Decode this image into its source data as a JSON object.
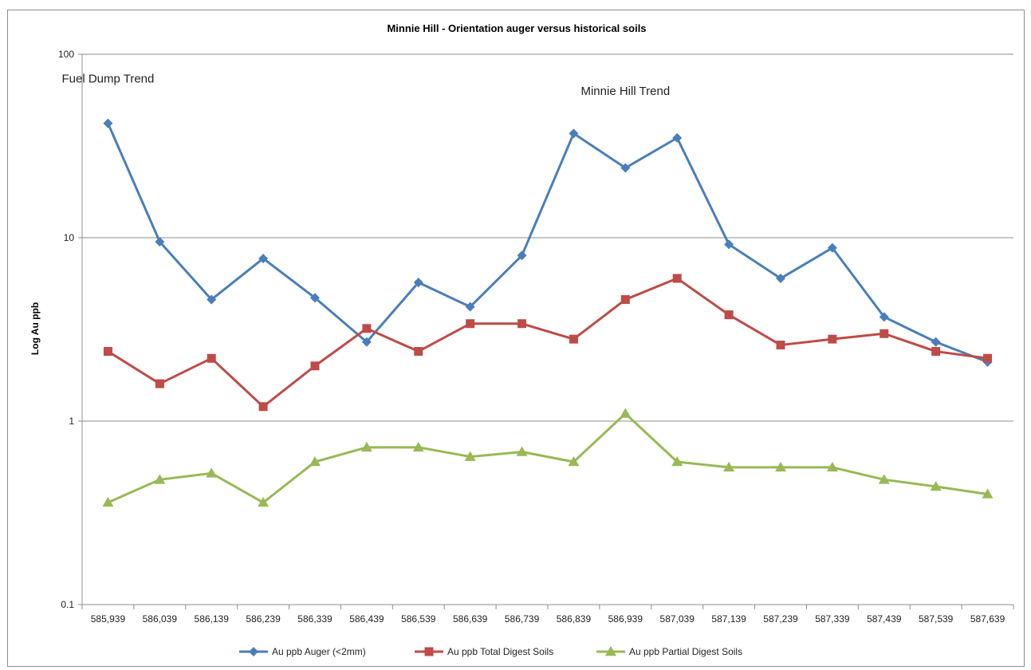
{
  "chart_data": {
    "type": "line",
    "title": "Minnie Hill - Orientation auger versus historical soils",
    "xlabel": "",
    "ylabel": "Log Au ppb",
    "y_scale": "log",
    "ylim": [
      0.1,
      100
    ],
    "y_ticks": [
      "0.1",
      "1",
      "10",
      "100"
    ],
    "grid": "horizontal major gridlines",
    "legend_position": "bottom",
    "categories": [
      "585,939",
      "586,039",
      "586,139",
      "586,239",
      "586,339",
      "586,439",
      "586,539",
      "586,639",
      "586,739",
      "586,839",
      "586,939",
      "587,039",
      "587,139",
      "587,239",
      "587,339",
      "587,439",
      "587,539",
      "587,639"
    ],
    "series": [
      {
        "name": "Au ppb Auger (<2mm)",
        "color": "#4a7ebb",
        "marker": "diamond",
        "values": [
          42,
          9.5,
          4.6,
          7.7,
          4.7,
          2.7,
          5.7,
          4.2,
          8.0,
          37,
          24,
          35,
          9.2,
          6.0,
          8.8,
          3.7,
          2.7,
          2.1
        ]
      },
      {
        "name": "Au ppb Total Digest Soils",
        "color": "#be4b48",
        "marker": "square",
        "values": [
          2.4,
          1.6,
          2.2,
          1.2,
          2.0,
          3.2,
          2.4,
          3.4,
          3.4,
          2.8,
          4.6,
          6.0,
          3.8,
          2.6,
          2.8,
          3.0,
          2.4,
          2.2
        ]
      },
      {
        "name": "Au ppb Partial Digest Soils",
        "color": "#98b954",
        "marker": "triangle",
        "values": [
          0.36,
          0.48,
          0.52,
          0.36,
          0.6,
          0.72,
          0.72,
          0.64,
          0.68,
          0.6,
          1.1,
          0.6,
          0.56,
          0.56,
          0.56,
          0.48,
          0.44,
          0.4
        ]
      }
    ],
    "annotations": [
      {
        "text": "Fuel Dump Trend",
        "category_index": 0,
        "value": 70
      },
      {
        "text": "Minnie Hill Trend",
        "category_index": 10,
        "value": 60
      }
    ]
  }
}
